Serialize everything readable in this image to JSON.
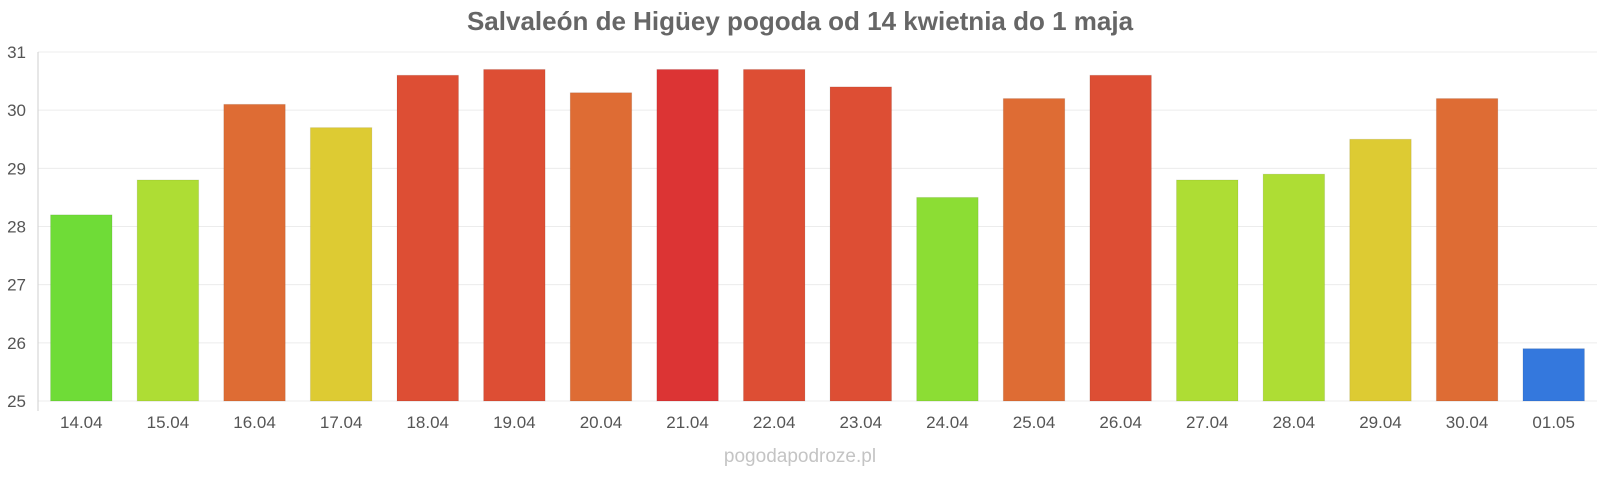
{
  "chart_data": {
    "type": "bar",
    "title": "Salvaleón de Higüey pogoda od 14 kwietnia do 1 maja",
    "xlabel": "",
    "ylabel": "",
    "ylim": [
      25,
      31
    ],
    "yticks": [
      25,
      26,
      27,
      28,
      29,
      30,
      31
    ],
    "grid": true,
    "legend": "none",
    "categories": [
      "14.04",
      "15.04",
      "16.04",
      "17.04",
      "18.04",
      "19.04",
      "20.04",
      "21.04",
      "22.04",
      "23.04",
      "24.04",
      "25.04",
      "26.04",
      "27.04",
      "28.04",
      "29.04",
      "30.04",
      "01.05"
    ],
    "values": [
      28.2,
      28.8,
      30.1,
      29.7,
      30.6,
      30.7,
      30.3,
      30.7,
      30.7,
      30.4,
      28.5,
      30.2,
      30.6,
      28.8,
      28.9,
      29.5,
      30.2,
      25.9
    ],
    "colors": [
      "#6fdc37",
      "#aedd34",
      "#de6c34",
      "#ddcb33",
      "#dd4e34",
      "#dd4e34",
      "#de6c34",
      "#dc3434",
      "#dd4e34",
      "#dd4e34",
      "#8cdd34",
      "#de6c34",
      "#dd4e34",
      "#aedd34",
      "#aedd34",
      "#ddcb33",
      "#de6c34",
      "#3478dd"
    ]
  },
  "watermark": "pogodapodroze.pl"
}
